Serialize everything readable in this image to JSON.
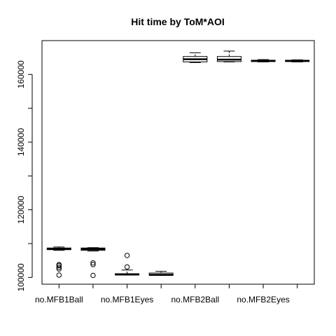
{
  "chart_data": {
    "type": "box",
    "title": "Hit time by ToM*AOI",
    "xlabel": "",
    "ylabel": "",
    "ylim": [
      98000,
      170000
    ],
    "y_ticks": [
      100000,
      120000,
      140000,
      160000
    ],
    "y_tick_labels": [
      "100000",
      "120000",
      "140000",
      "160000"
    ],
    "x_tick_labels": [
      "no.MFB1Ball",
      "no.MFB1Eyes",
      "no.MFB2Ball",
      "no.MFB2Eyes"
    ],
    "x_tick_label_positions": [
      1,
      3,
      5,
      7
    ],
    "boxes": [
      {
        "min": 108000,
        "q1": 108200,
        "median": 108500,
        "q3": 108700,
        "max": 109000,
        "outliers": [
          103800,
          103500,
          103000,
          102500,
          100700
        ]
      },
      {
        "min": 107800,
        "q1": 108000,
        "median": 108400,
        "q3": 108700,
        "max": 108800,
        "outliers": [
          104300,
          103800,
          100600
        ]
      },
      {
        "min": 100700,
        "q1": 100700,
        "median": 100900,
        "q3": 101100,
        "max": 102200,
        "outliers": [
          103100,
          106500
        ]
      },
      {
        "min": 100600,
        "q1": 100600,
        "median": 100800,
        "q3": 101300,
        "max": 101800,
        "outliers": []
      },
      {
        "min": 163500,
        "q1": 163700,
        "median": 164500,
        "q3": 165300,
        "max": 166400,
        "outliers": []
      },
      {
        "min": 163700,
        "q1": 163800,
        "median": 164400,
        "q3": 165300,
        "max": 166900,
        "outliers": []
      },
      {
        "min": 163700,
        "q1": 163800,
        "median": 164000,
        "q3": 164200,
        "max": 164400,
        "outliers": []
      },
      {
        "min": 163700,
        "q1": 163800,
        "median": 164000,
        "q3": 164200,
        "max": 164300,
        "outliers": []
      }
    ]
  }
}
